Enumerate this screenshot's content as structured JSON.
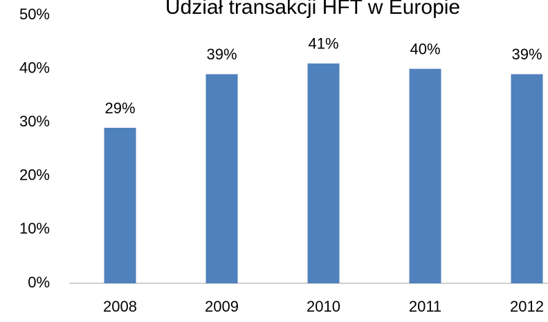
{
  "chart_data": {
    "type": "bar",
    "title": "Udział transakcji HFT w Europie",
    "categories": [
      "2008",
      "2009",
      "2010",
      "2011",
      "2012"
    ],
    "values": [
      29,
      39,
      41,
      40,
      39
    ],
    "value_labels": [
      "29%",
      "39%",
      "41%",
      "40%",
      "39%"
    ],
    "color": "#4f81bd",
    "ylim": [
      0,
      50
    ],
    "yticks": [
      {
        "value": 0,
        "label": "0%"
      },
      {
        "value": 10,
        "label": "10%"
      },
      {
        "value": 20,
        "label": "20%"
      },
      {
        "value": 30,
        "label": "30%"
      },
      {
        "value": 40,
        "label": "40%"
      },
      {
        "value": 50,
        "label": "50%"
      }
    ],
    "grid": false
  }
}
